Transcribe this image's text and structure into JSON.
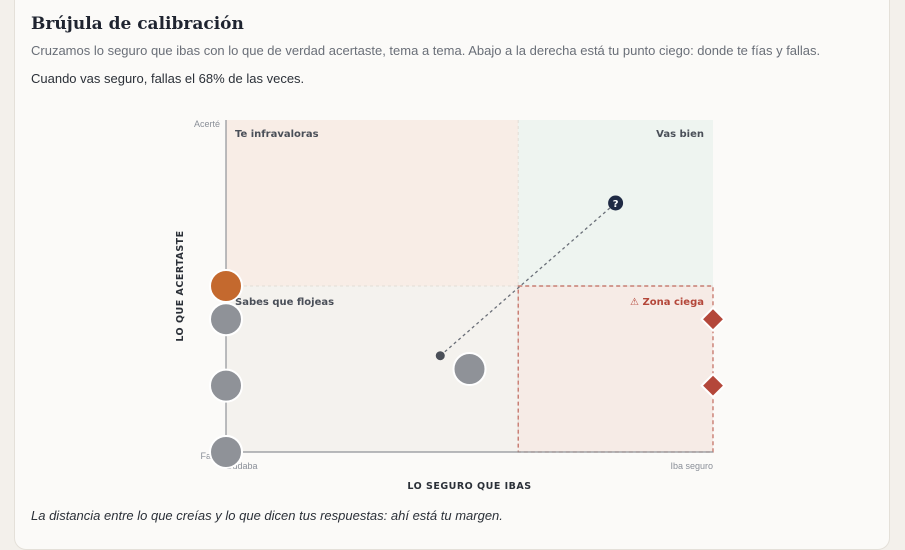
{
  "card": {
    "title": "Brújula de calibración",
    "subtitle": "Cruzamos lo seguro que ibas con lo que de verdad acertaste, tema a tema. Abajo a la derecha está tu punto ciego: donde te fías y fallas.",
    "stat": "Cuando vas seguro, fallas el 68% de las veces.",
    "footnote": "La distancia entre lo que creías y lo que dicen tus respuestas: ahí está tu margen."
  },
  "chart_data": {
    "type": "scatter",
    "xlabel": "LO SEGURO QUE IBAS",
    "ylabel": "LO QUE ACERTASTE",
    "xlim": [
      0,
      1
    ],
    "ylim": [
      0,
      1
    ],
    "x_ticks": [
      {
        "value": 0,
        "label": "Dudaba"
      },
      {
        "value": 1,
        "label": "Iba seguro"
      }
    ],
    "y_ticks": [
      {
        "value": 1,
        "label": "Acerté"
      },
      {
        "value": 0,
        "label": "Fallé"
      }
    ],
    "thresholds": {
      "x": 0.6,
      "y": 0.5
    },
    "quadrants": [
      {
        "id": "top-left",
        "label": "Te infravaloras",
        "color": "#f8ede6"
      },
      {
        "id": "top-right",
        "label": "Vas bien",
        "color": "#eef4f0"
      },
      {
        "id": "bottom-left",
        "label": "Sabes que flojeas",
        "color": "#f4f2ee"
      },
      {
        "id": "bottom-right",
        "label": "⚠ Zona ciega",
        "color": "#f6ebe6",
        "highlight": true
      }
    ],
    "points": [
      {
        "x": 0.0,
        "y": 0.5,
        "shape": "circle",
        "color": "#c4692e"
      },
      {
        "x": 0.0,
        "y": 0.4,
        "shape": "circle",
        "color": "#8f9298"
      },
      {
        "x": 0.0,
        "y": 0.2,
        "shape": "circle",
        "color": "#8f9298"
      },
      {
        "x": 0.0,
        "y": 0.0,
        "shape": "circle",
        "color": "#8f9298"
      },
      {
        "x": 0.5,
        "y": 0.25,
        "shape": "circle",
        "color": "#8f9298"
      },
      {
        "x": 1.0,
        "y": 0.4,
        "shape": "diamond",
        "color": "#b4473a"
      },
      {
        "x": 1.0,
        "y": 0.2,
        "shape": "diamond",
        "color": "#b4473a"
      }
    ],
    "calibration_line": {
      "from": {
        "x": 0.44,
        "y": 0.29
      },
      "to": {
        "x": 0.8,
        "y": 0.75,
        "marker": "?"
      }
    },
    "colors": {
      "axis": "#8f9298",
      "dashed": "#6a6f78",
      "marker_dark": "#1f2a44",
      "risk": "#b4473a"
    }
  }
}
